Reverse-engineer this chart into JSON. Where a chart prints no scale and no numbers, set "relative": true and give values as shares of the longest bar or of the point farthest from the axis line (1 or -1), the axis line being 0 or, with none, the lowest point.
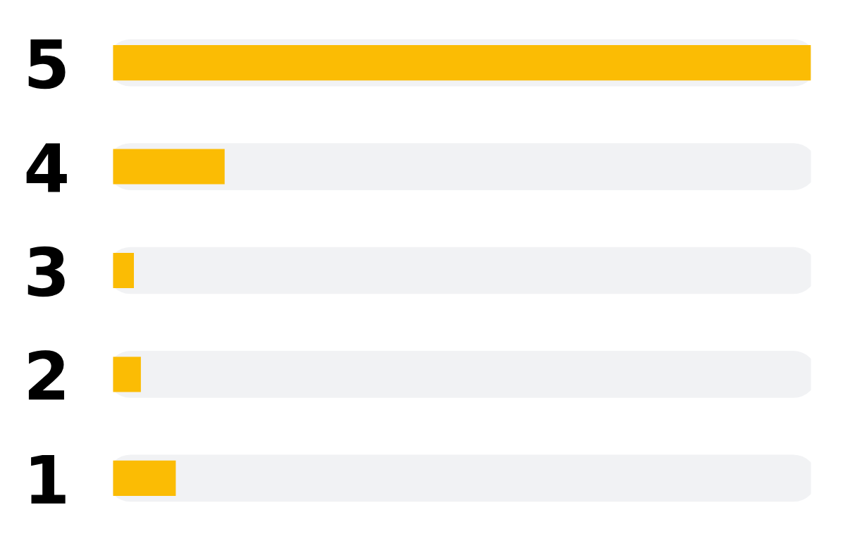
{
  "chart_data": {
    "type": "bar",
    "orientation": "horizontal",
    "relative": true,
    "categories": [
      "5",
      "4",
      "3",
      "2",
      "1"
    ],
    "values": [
      1,
      0.16,
      0.03,
      0.04,
      0.09
    ],
    "color": "#fbbc04"
  }
}
